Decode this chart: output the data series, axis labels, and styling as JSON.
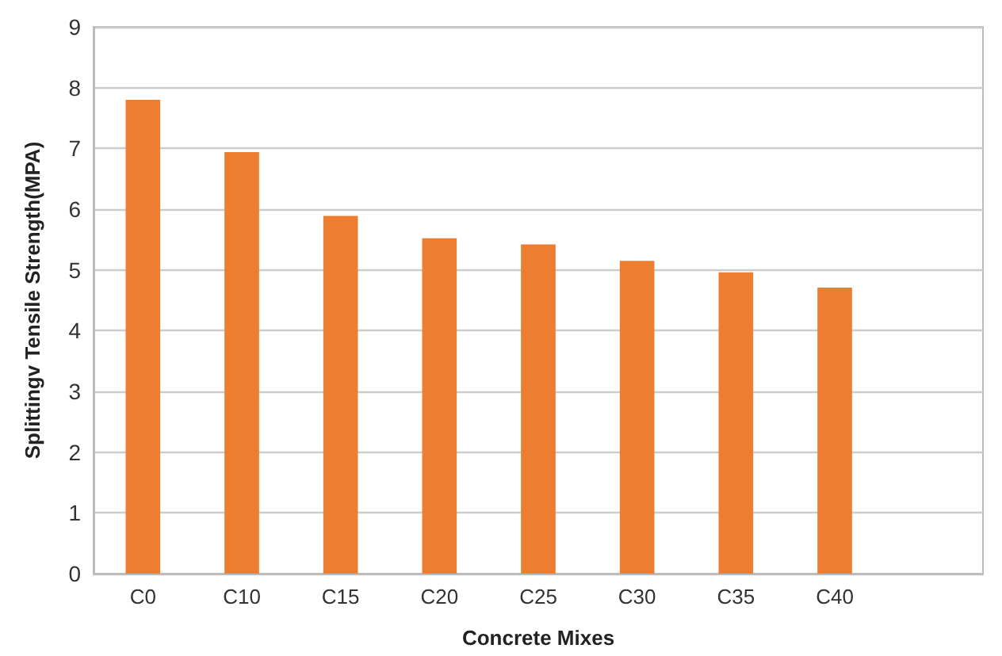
{
  "chart_data": {
    "type": "bar",
    "xlabel": "Concrete Mixes",
    "ylabel": "Splittingv Tensile Strength(MPA)",
    "categories": [
      "C0",
      "C10",
      "C15",
      "C20",
      "C25",
      "C30",
      "C35",
      "C40",
      null
    ],
    "values": [
      7.8,
      6.94,
      5.89,
      5.52,
      5.42,
      5.15,
      4.96,
      4.71,
      null
    ],
    "color": "#ed7d31",
    "ylim": [
      0,
      9
    ],
    "yticks": [
      0,
      1,
      2,
      3,
      4,
      5,
      6,
      7,
      8,
      9
    ],
    "grid": "y"
  }
}
